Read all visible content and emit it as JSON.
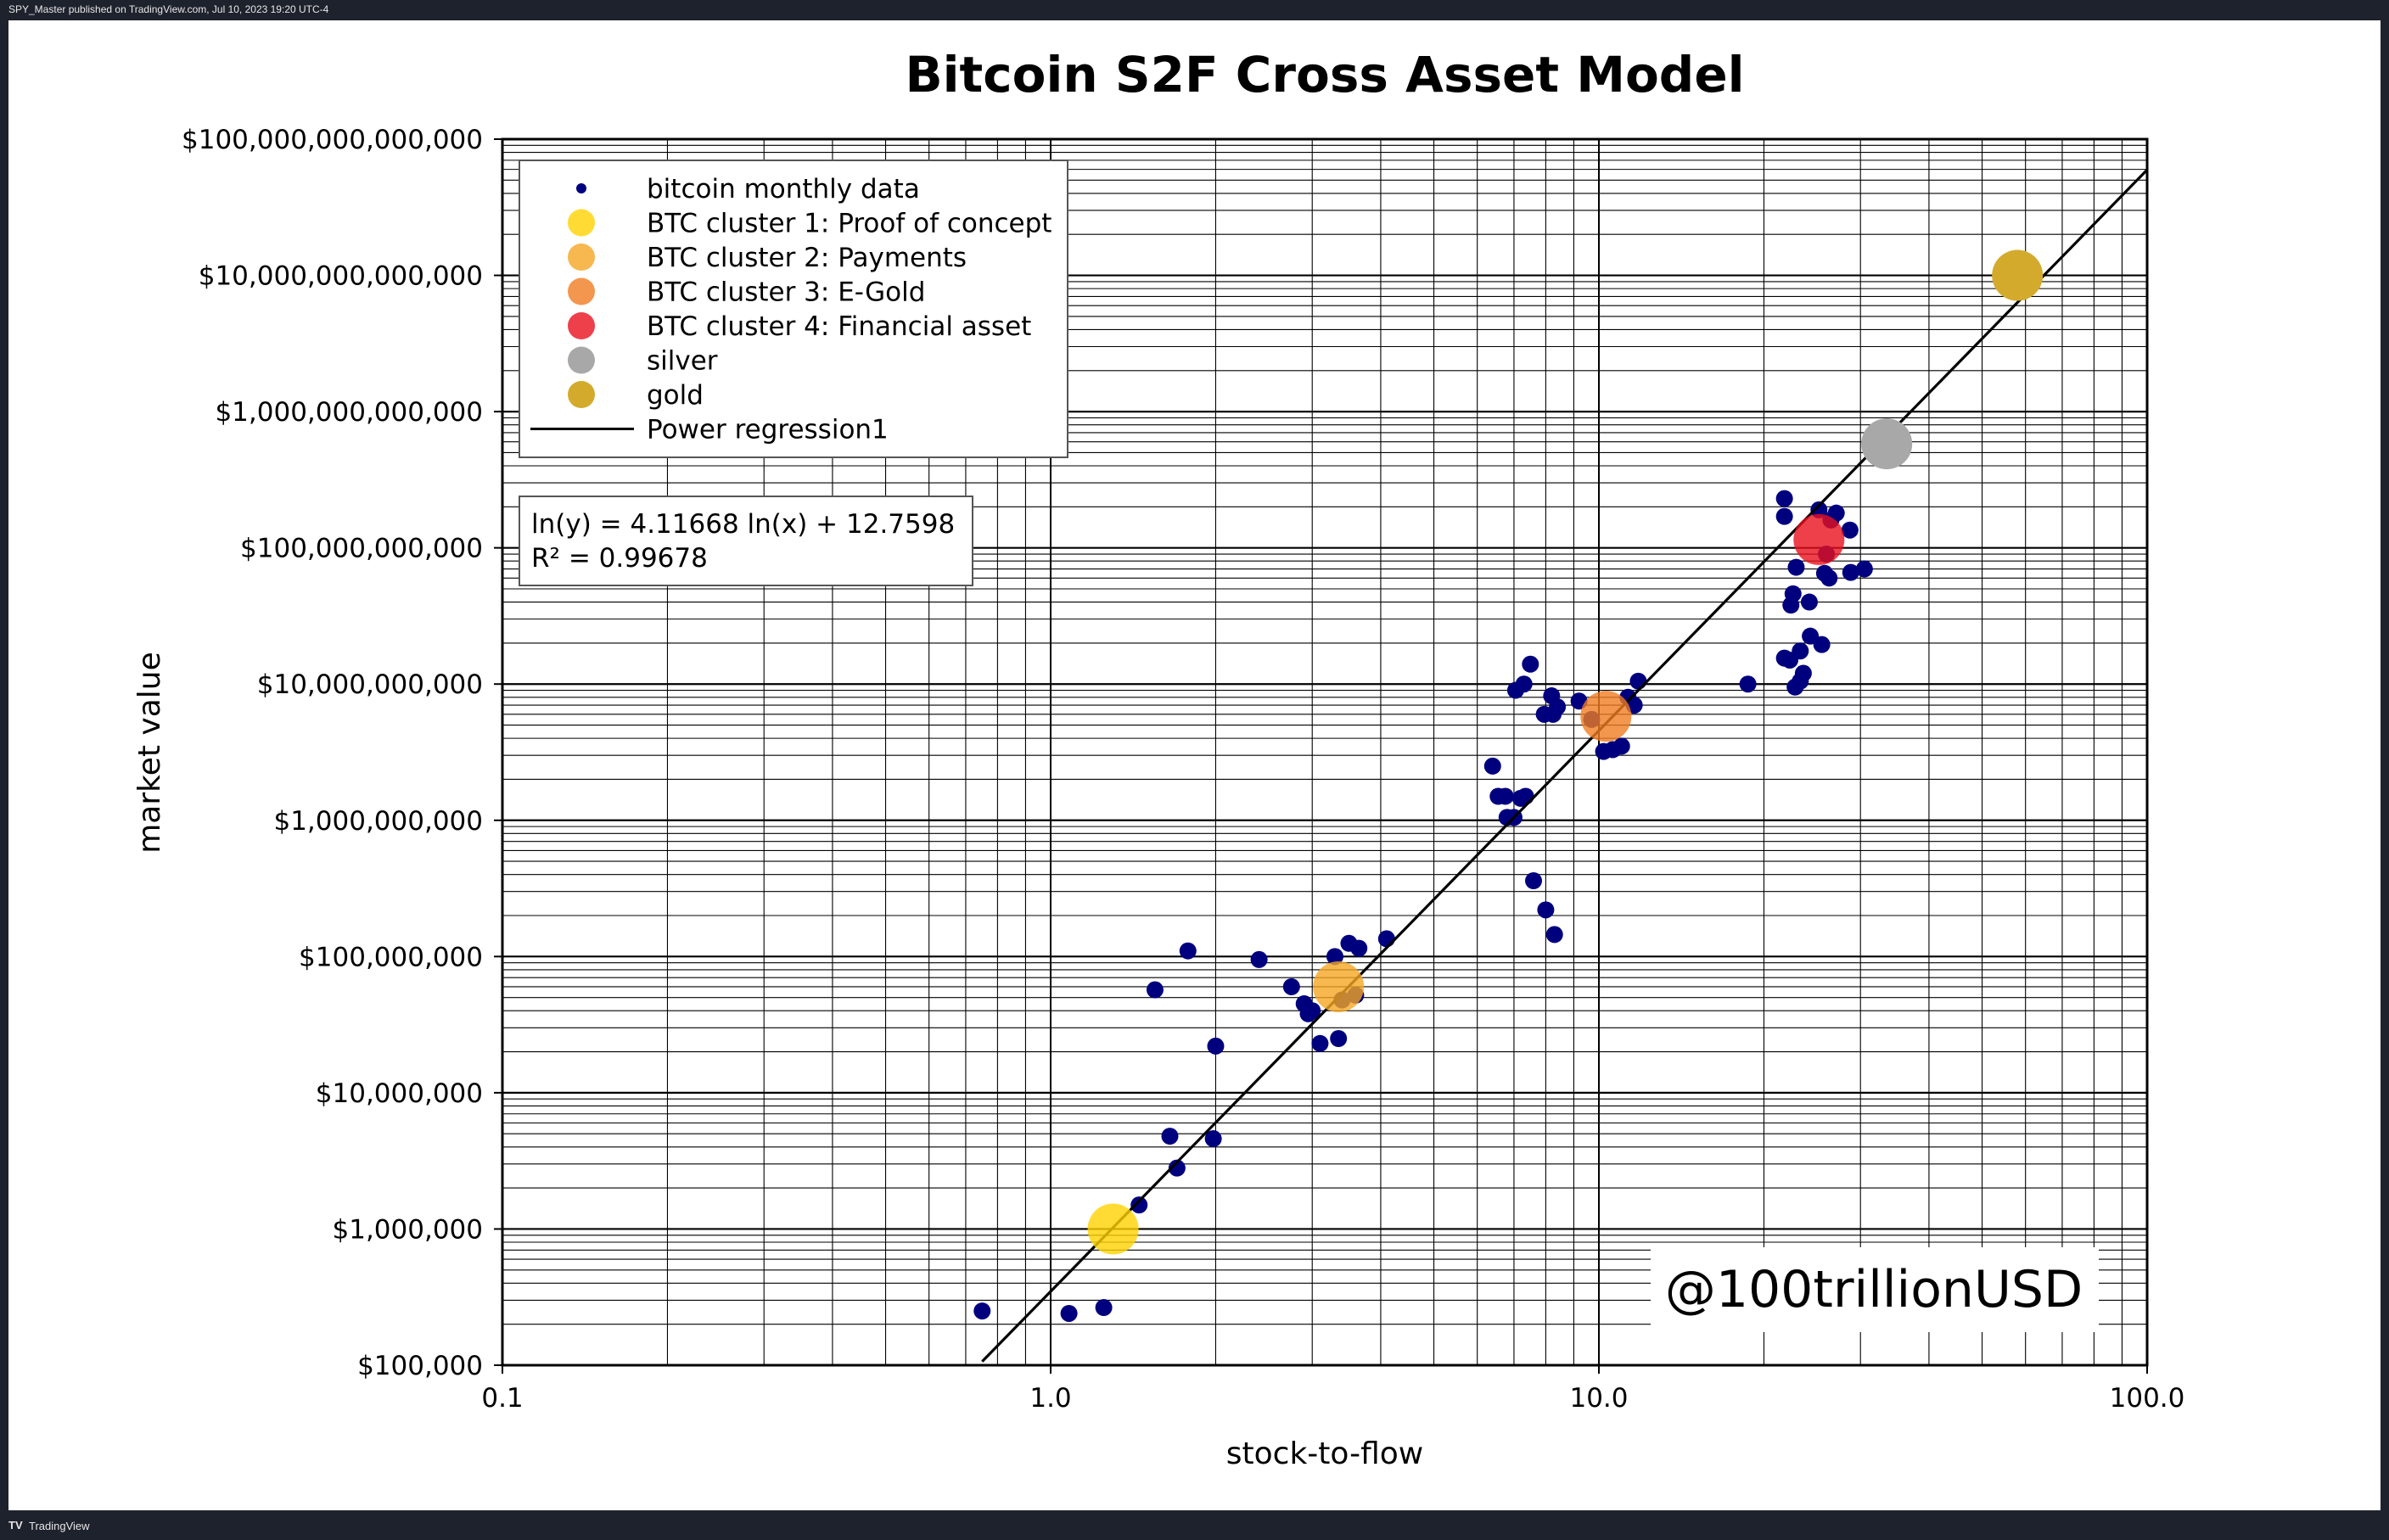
{
  "header": {
    "publish_note": "SPY_Master published on TradingView.com, Jul 10, 2023 19:20 UTC-4"
  },
  "footer": {
    "brand": "TradingView",
    "logo_glyph": "TV"
  },
  "colors": {
    "background": "#ffffff",
    "bitcoin_monthly": "#00007f",
    "cluster_1": "#ffd200",
    "cluster_2": "#f5a623",
    "cluster_3": "#f07c22",
    "cluster_4": "#e8101e",
    "silver": "#a8a8a8",
    "gold": "#d4aa2c",
    "regression": "#000000"
  },
  "watermark": "@100trillionUSD",
  "chart_data": {
    "type": "scatter",
    "title": "Bitcoin S2F Cross Asset Model",
    "xlabel": "stock-to-flow",
    "ylabel": "market value",
    "xscale": "log",
    "yscale": "log",
    "xlim": [
      0.1,
      100
    ],
    "ylim": [
      100000,
      100000000000000
    ],
    "grid": true,
    "legend_position": "top-left",
    "x_ticks": [
      "0.1",
      "1.0",
      "10.0",
      "100.0"
    ],
    "y_ticks": [
      "$100,000",
      "$1,000,000",
      "$10,000,000",
      "$100,000,000",
      "$1,000,000,000",
      "$10,000,000,000",
      "$100,000,000,000",
      "$1,000,000,000,000",
      "$10,000,000,000,000",
      "$100,000,000,000,000"
    ],
    "legend": [
      "bitcoin monthly data",
      "BTC cluster 1: Proof of concept",
      "BTC cluster 2: Payments",
      "BTC cluster 3: E-Gold",
      "BTC cluster 4: Financial asset",
      "silver",
      "gold",
      "Power regression1"
    ],
    "annotation": [
      "ln(y) = 4.11668 ln(x) + 12.7598",
      "R² = 0.99678"
    ],
    "series": [
      {
        "name": "bitcoin monthly data",
        "points": [
          [
            0.75,
            250000
          ],
          [
            1.08,
            240000
          ],
          [
            1.25,
            265000
          ],
          [
            1.45,
            1500000
          ],
          [
            1.65,
            4800000
          ],
          [
            1.7,
            2800000
          ],
          [
            1.98,
            4600000
          ],
          [
            2.0,
            22000000
          ],
          [
            1.55,
            57000000
          ],
          [
            1.78,
            110000000
          ],
          [
            2.4,
            95000000
          ],
          [
            2.75,
            60000000
          ],
          [
            2.9,
            45000000
          ],
          [
            2.95,
            38000000
          ],
          [
            3.0,
            40000000
          ],
          [
            3.1,
            23000000
          ],
          [
            3.35,
            25000000
          ],
          [
            3.3,
            100000000
          ],
          [
            3.5,
            125000000
          ],
          [
            3.65,
            115000000
          ],
          [
            4.1,
            135000000
          ],
          [
            3.4,
            48000000
          ],
          [
            3.6,
            52000000
          ],
          [
            6.4,
            2500000000
          ],
          [
            6.55,
            1500000000
          ],
          [
            6.75,
            1500000000
          ],
          [
            6.8,
            1050000000
          ],
          [
            7.0,
            1050000000
          ],
          [
            7.2,
            1450000000
          ],
          [
            7.35,
            1500000000
          ],
          [
            7.05,
            9000000000
          ],
          [
            7.3,
            10000000000
          ],
          [
            7.5,
            14000000000
          ],
          [
            7.95,
            6000000000
          ],
          [
            8.2,
            8200000000
          ],
          [
            8.25,
            6000000000
          ],
          [
            8.4,
            6800000000
          ],
          [
            9.2,
            7500000000
          ],
          [
            9.7,
            5500000000
          ],
          [
            10.2,
            3200000000
          ],
          [
            10.6,
            3300000000
          ],
          [
            11.0,
            3500000000
          ],
          [
            11.3,
            8000000000
          ],
          [
            11.6,
            7000000000
          ],
          [
            11.8,
            10500000000
          ],
          [
            7.6,
            360000000
          ],
          [
            8.0,
            220000000
          ],
          [
            8.3,
            145000000
          ],
          [
            18.7,
            10000000000
          ],
          [
            21.8,
            15500000000
          ],
          [
            22.3,
            15000000000
          ],
          [
            22.8,
            9500000000
          ],
          [
            23.3,
            10500000000
          ],
          [
            23.6,
            12000000000
          ],
          [
            23.3,
            17500000000
          ],
          [
            24.3,
            22500000000
          ],
          [
            25.5,
            19500000000
          ],
          [
            22.4,
            38000000000
          ],
          [
            22.6,
            46000000000
          ],
          [
            24.2,
            40000000000
          ],
          [
            22.9,
            72000000000
          ],
          [
            25.8,
            65000000000
          ],
          [
            26.3,
            60000000000
          ],
          [
            28.8,
            66000000000
          ],
          [
            30.5,
            70000000000
          ],
          [
            21.8,
            230000000000
          ],
          [
            21.8,
            170000000000
          ],
          [
            27.1,
            180000000000
          ],
          [
            28.7,
            135000000000
          ],
          [
            26.5,
            160000000000
          ],
          [
            25.2,
            190000000000
          ],
          [
            26.0,
            90000000000
          ]
        ]
      },
      {
        "name": "BTC cluster 1: Proof of concept",
        "points": [
          [
            1.3,
            1000000
          ]
        ]
      },
      {
        "name": "BTC cluster 2: Payments",
        "points": [
          [
            3.35,
            60000000
          ]
        ]
      },
      {
        "name": "BTC cluster 3: E-Gold",
        "points": [
          [
            10.3,
            5800000000
          ]
        ]
      },
      {
        "name": "BTC cluster 4: Financial asset",
        "points": [
          [
            25.2,
            115000000000
          ]
        ]
      },
      {
        "name": "silver",
        "points": [
          [
            33.5,
            580000000000
          ]
        ]
      },
      {
        "name": "gold",
        "points": [
          [
            58.0,
            10000000000000
          ]
        ]
      }
    ],
    "regression": {
      "name": "Power regression1",
      "slope": 4.11668,
      "intercept": 12.7598,
      "x_range": [
        0.75,
        100
      ]
    }
  }
}
